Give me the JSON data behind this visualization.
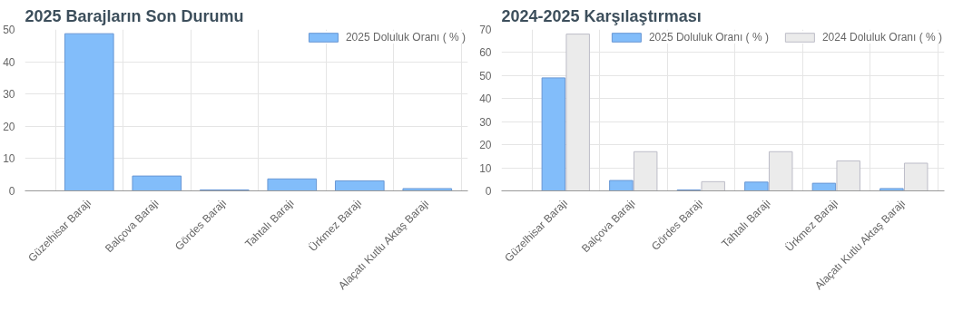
{
  "chart_data": [
    {
      "type": "bar",
      "title": "2025 Barajların Son Durumu",
      "categories": [
        "Güzelhisar Barajı",
        "Balçova Barajı",
        "Gördes Barajı",
        "Tahtalı Barajı",
        "Ürkmez Barajı",
        "Alaçatı Kutlu Aktaş Barajı"
      ],
      "series": [
        {
          "name": "2025 Doluluk Oranı ( % )",
          "color": "#82bdfa",
          "values": [
            48.7,
            4.6,
            0.3,
            3.7,
            3.1,
            0.7
          ]
        }
      ],
      "ylim": [
        0,
        50
      ],
      "yticks": [
        0,
        10,
        20,
        30,
        40,
        50
      ],
      "grid": true,
      "legend": "top"
    },
    {
      "type": "bar",
      "title": "2024-2025 Karşılaştırması",
      "categories": [
        "Güzelhisar Barajı",
        "Balçova Barajı",
        "Gördes Barajı",
        "Tahtalı Barajı",
        "Ürkmez Barajı",
        "Alaçatı Kutlu Aktaş Barajı"
      ],
      "series": [
        {
          "name": "2025 Doluluk Oranı ( % )",
          "color": "#82bdfa",
          "values": [
            49,
            4.5,
            0.4,
            3.8,
            3.3,
            1
          ]
        },
        {
          "name": "2024 Doluluk Oranı ( % )",
          "color": "#ebebeb",
          "values": [
            68,
            17,
            4,
            17,
            13,
            12
          ]
        }
      ],
      "ylim": [
        0,
        70
      ],
      "yticks": [
        0,
        10,
        20,
        30,
        40,
        50,
        60,
        70
      ],
      "grid": true,
      "legend": "top"
    }
  ]
}
